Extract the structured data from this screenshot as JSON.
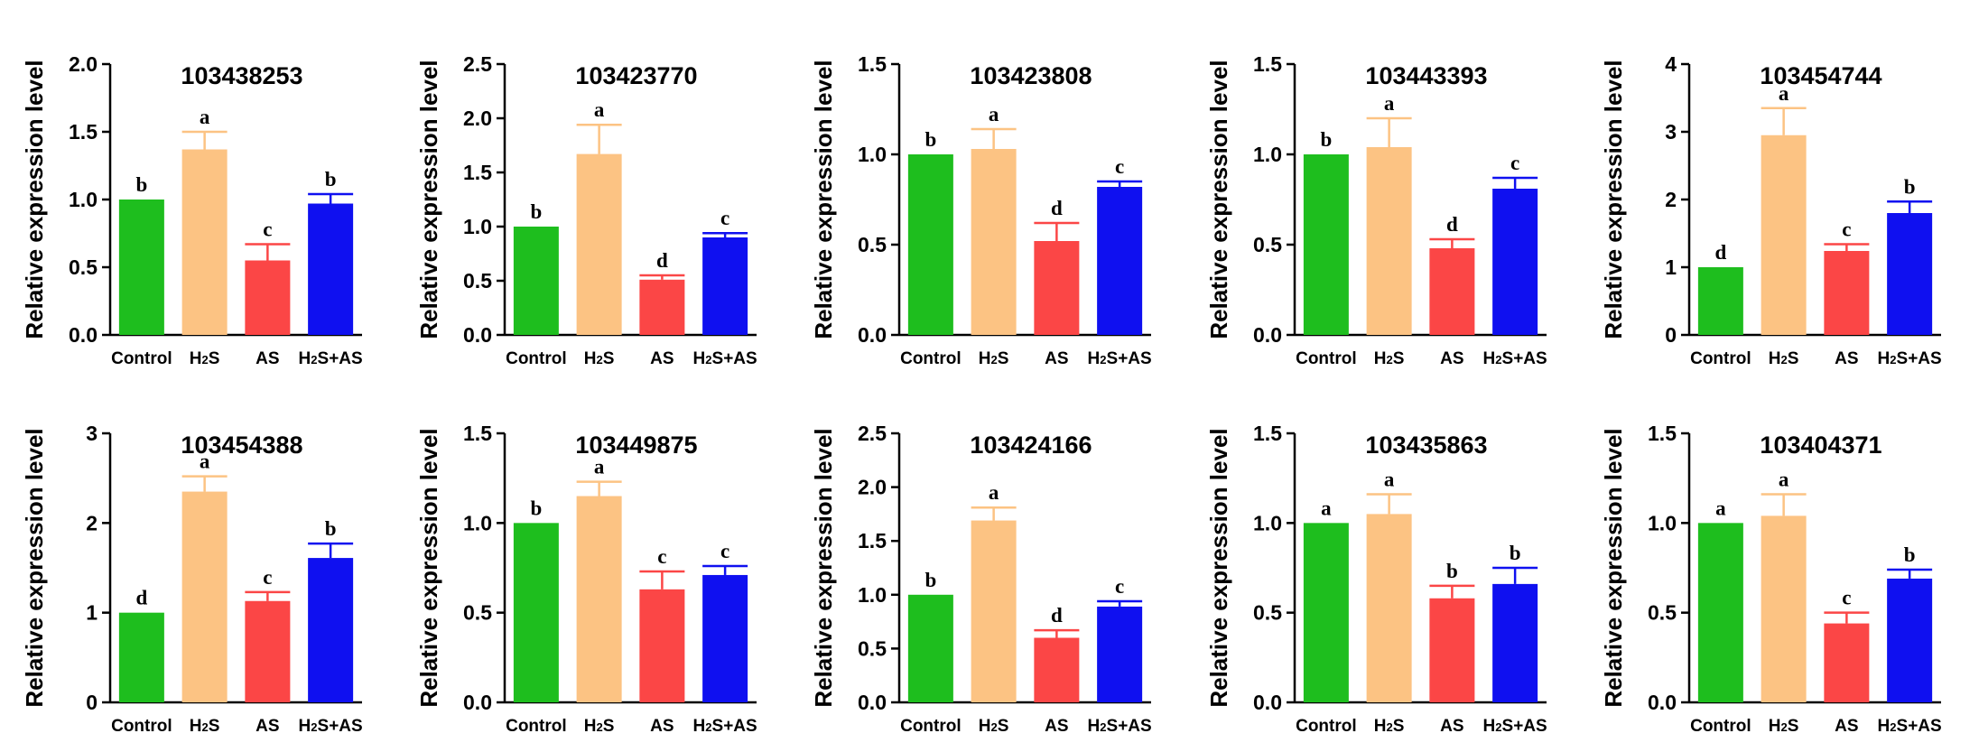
{
  "ylabel": "Relative expression level",
  "categories": [
    "Control",
    "H2S",
    "AS",
    "H2S+AS"
  ],
  "colors": {
    "Control": "#1ebe1e",
    "H2S": "#fcc383",
    "AS": "#fb4646",
    "H2S+AS": "#0f10f0"
  },
  "chart_data": [
    {
      "type": "bar",
      "title": "103438253",
      "ylabel": "Relative expression level",
      "categories": [
        "Control",
        "H2S",
        "AS",
        "H2S+AS"
      ],
      "values": [
        1.0,
        1.37,
        0.55,
        0.97
      ],
      "errors": [
        0,
        0.13,
        0.12,
        0.07
      ],
      "labels": [
        "b",
        "a",
        "c",
        "b"
      ],
      "ylim": [
        0,
        2.0
      ],
      "yticks": [
        "0.0",
        "0.5",
        "1.0",
        "1.5",
        "2.0"
      ]
    },
    {
      "type": "bar",
      "title": "103423770",
      "ylabel": "Relative expression level",
      "categories": [
        "Control",
        "H2S",
        "AS",
        "H2S+AS"
      ],
      "values": [
        1.0,
        1.67,
        0.51,
        0.9
      ],
      "errors": [
        0,
        0.27,
        0.04,
        0.04
      ],
      "labels": [
        "b",
        "a",
        "d",
        "c"
      ],
      "ylim": [
        0,
        2.5
      ],
      "yticks": [
        "0.0",
        "0.5",
        "1.0",
        "1.5",
        "2.0",
        "2.5"
      ]
    },
    {
      "type": "bar",
      "title": "103423808",
      "ylabel": "Relative expression level",
      "categories": [
        "Control",
        "H2S",
        "AS",
        "H2S+AS"
      ],
      "values": [
        1.0,
        1.03,
        0.52,
        0.82
      ],
      "errors": [
        0,
        0.11,
        0.1,
        0.03
      ],
      "labels": [
        "b",
        "a",
        "d",
        "c"
      ],
      "ylim": [
        0,
        1.5
      ],
      "yticks": [
        "0.0",
        "0.5",
        "1.0",
        "1.5"
      ]
    },
    {
      "type": "bar",
      "title": "103443393",
      "ylabel": "Relative expression level",
      "categories": [
        "Control",
        "H2S",
        "AS",
        "H2S+AS"
      ],
      "values": [
        1.0,
        1.04,
        0.48,
        0.81
      ],
      "errors": [
        0,
        0.16,
        0.05,
        0.06
      ],
      "labels": [
        "b",
        "a",
        "d",
        "c"
      ],
      "ylim": [
        0,
        1.5
      ],
      "yticks": [
        "0.0",
        "0.5",
        "1.0",
        "1.5"
      ]
    },
    {
      "type": "bar",
      "title": "103454744",
      "ylabel": "Relative expression level",
      "categories": [
        "Control",
        "H2S",
        "AS",
        "H2S+AS"
      ],
      "values": [
        1.0,
        2.95,
        1.24,
        1.8
      ],
      "errors": [
        0,
        0.4,
        0.1,
        0.17
      ],
      "labels": [
        "d",
        "a",
        "c",
        "b"
      ],
      "ylim": [
        0,
        4
      ],
      "yticks": [
        "0",
        "1",
        "2",
        "3",
        "4"
      ]
    },
    {
      "type": "bar",
      "title": "103454388",
      "ylabel": "Relative expression level",
      "categories": [
        "Control",
        "H2S",
        "AS",
        "H2S+AS"
      ],
      "values": [
        1.0,
        2.35,
        1.13,
        1.61
      ],
      "errors": [
        0,
        0.17,
        0.1,
        0.16
      ],
      "labels": [
        "d",
        "a",
        "c",
        "b"
      ],
      "ylim": [
        0,
        3
      ],
      "yticks": [
        "0",
        "1",
        "2",
        "3"
      ]
    },
    {
      "type": "bar",
      "title": "103449875",
      "ylabel": "Relative expression level",
      "categories": [
        "Control",
        "H2S",
        "AS",
        "H2S+AS"
      ],
      "values": [
        1.0,
        1.15,
        0.63,
        0.71
      ],
      "errors": [
        0,
        0.08,
        0.1,
        0.05
      ],
      "labels": [
        "b",
        "a",
        "c",
        "c"
      ],
      "ylim": [
        0,
        1.5
      ],
      "yticks": [
        "0.0",
        "0.5",
        "1.0",
        "1.5"
      ]
    },
    {
      "type": "bar",
      "title": "103424166",
      "ylabel": "Relative expression level",
      "categories": [
        "Control",
        "H2S",
        "AS",
        "H2S+AS"
      ],
      "values": [
        1.0,
        1.69,
        0.6,
        0.89
      ],
      "errors": [
        0,
        0.12,
        0.07,
        0.05
      ],
      "labels": [
        "b",
        "a",
        "d",
        "c"
      ],
      "ylim": [
        0,
        2.5
      ],
      "yticks": [
        "0.0",
        "0.5",
        "1.0",
        "1.5",
        "2.0",
        "2.5"
      ]
    },
    {
      "type": "bar",
      "title": "103435863",
      "ylabel": "Relative expression level",
      "categories": [
        "Control",
        "H2S",
        "AS",
        "H2S+AS"
      ],
      "values": [
        1.0,
        1.05,
        0.58,
        0.66
      ],
      "errors": [
        0,
        0.11,
        0.07,
        0.09
      ],
      "labels": [
        "a",
        "a",
        "b",
        "b"
      ],
      "ylim": [
        0,
        1.5
      ],
      "yticks": [
        "0.0",
        "0.5",
        "1.0",
        "1.5"
      ]
    },
    {
      "type": "bar",
      "title": "103404371",
      "ylabel": "Relative expression level",
      "categories": [
        "Control",
        "H2S",
        "AS",
        "H2S+AS"
      ],
      "values": [
        1.0,
        1.04,
        0.44,
        0.69
      ],
      "errors": [
        0,
        0.12,
        0.06,
        0.05
      ],
      "labels": [
        "a",
        "a",
        "c",
        "b"
      ],
      "ylim": [
        0,
        1.5
      ],
      "yticks": [
        "0.0",
        "0.5",
        "1.0",
        "1.5"
      ]
    }
  ]
}
